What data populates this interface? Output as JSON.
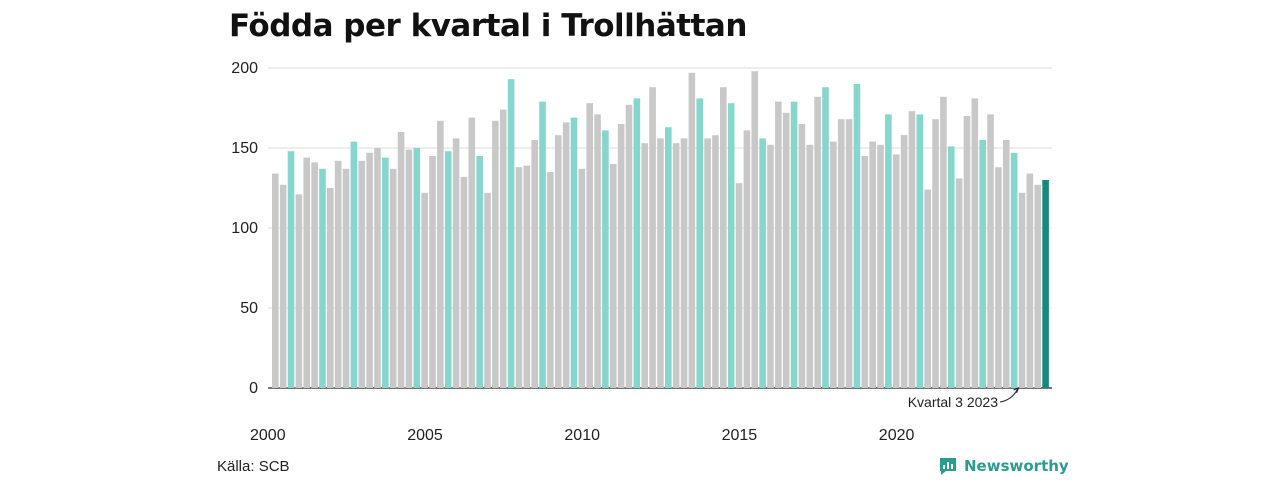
{
  "title": "Födda per kvartal i Trollhättan",
  "source": "Källa: SCB",
  "brand": {
    "name": "Newsworthy",
    "icon": "newsworthy-logo-icon"
  },
  "colors": {
    "other": "#c8c8c8",
    "q3": "#86d6cd",
    "latest": "#17897c",
    "grid": "#dddddd"
  },
  "chart_data": {
    "type": "bar",
    "title": "Födda per kvartal i Trollhättan",
    "xlabel": "",
    "ylabel": "",
    "ylim": [
      0,
      200
    ],
    "yticks": [
      0,
      50,
      100,
      150,
      200
    ],
    "xticks": [
      "2000",
      "2005",
      "2010",
      "2015",
      "2020"
    ],
    "grid": true,
    "annotation": "Kvartal 3 2023",
    "highlight": "Kvartal 3 markerat, sista stapeln = Kvartal 3 2023",
    "start_year": 2000,
    "values": [
      134,
      127,
      148,
      121,
      144,
      141,
      137,
      125,
      142,
      137,
      154,
      142,
      147,
      150,
      144,
      137,
      160,
      149,
      150,
      122,
      145,
      167,
      148,
      156,
      132,
      169,
      145,
      122,
      167,
      174,
      193,
      138,
      139,
      155,
      179,
      135,
      158,
      166,
      169,
      137,
      178,
      171,
      161,
      140,
      165,
      177,
      181,
      153,
      188,
      156,
      163,
      153,
      156,
      197,
      181,
      156,
      158,
      188,
      178,
      128,
      161,
      198,
      156,
      152,
      179,
      172,
      179,
      165,
      152,
      182,
      188,
      154,
      168,
      168,
      190,
      145,
      154,
      152,
      171,
      146,
      158,
      173,
      171,
      124,
      168,
      182,
      151,
      131,
      170,
      181,
      155,
      171,
      138,
      155,
      147,
      122,
      134,
      127,
      130
    ]
  }
}
